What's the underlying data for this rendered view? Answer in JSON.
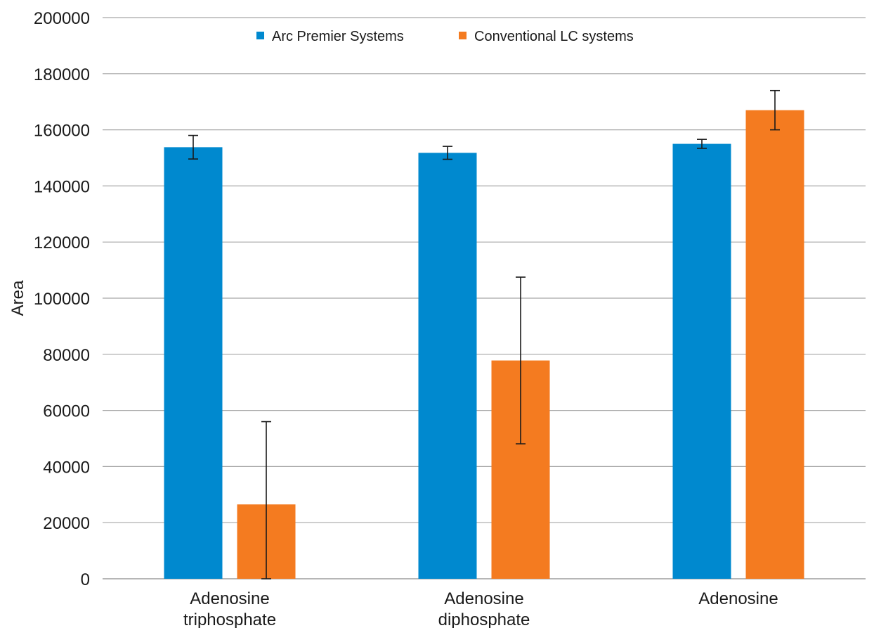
{
  "chart_data": {
    "type": "bar",
    "title": "",
    "xlabel": "",
    "ylabel": "Area",
    "ylim": [
      0,
      200000
    ],
    "yticks": [
      "0",
      "20000",
      "40000",
      "60000",
      "80000",
      "100000",
      "120000",
      "140000",
      "160000",
      "180000",
      "200000"
    ],
    "ytick_values": [
      0,
      20000,
      40000,
      60000,
      80000,
      100000,
      120000,
      140000,
      160000,
      180000,
      200000
    ],
    "grid": true,
    "legend_position": "top-center",
    "categories": [
      [
        "Adenosine",
        "triphosphate"
      ],
      [
        "Adenosine",
        "diphosphate"
      ],
      [
        "Adenosine"
      ]
    ],
    "series": [
      {
        "name": "Arc Premier Systems",
        "color": "#0089cf",
        "values": [
          153800,
          151800,
          155000
        ],
        "errors": [
          4200,
          2300,
          1600
        ]
      },
      {
        "name": "Conventional LC systems",
        "color": "#f47b20",
        "values": [
          26500,
          77800,
          167000
        ],
        "errors": [
          29500,
          29700,
          7000
        ]
      }
    ]
  }
}
